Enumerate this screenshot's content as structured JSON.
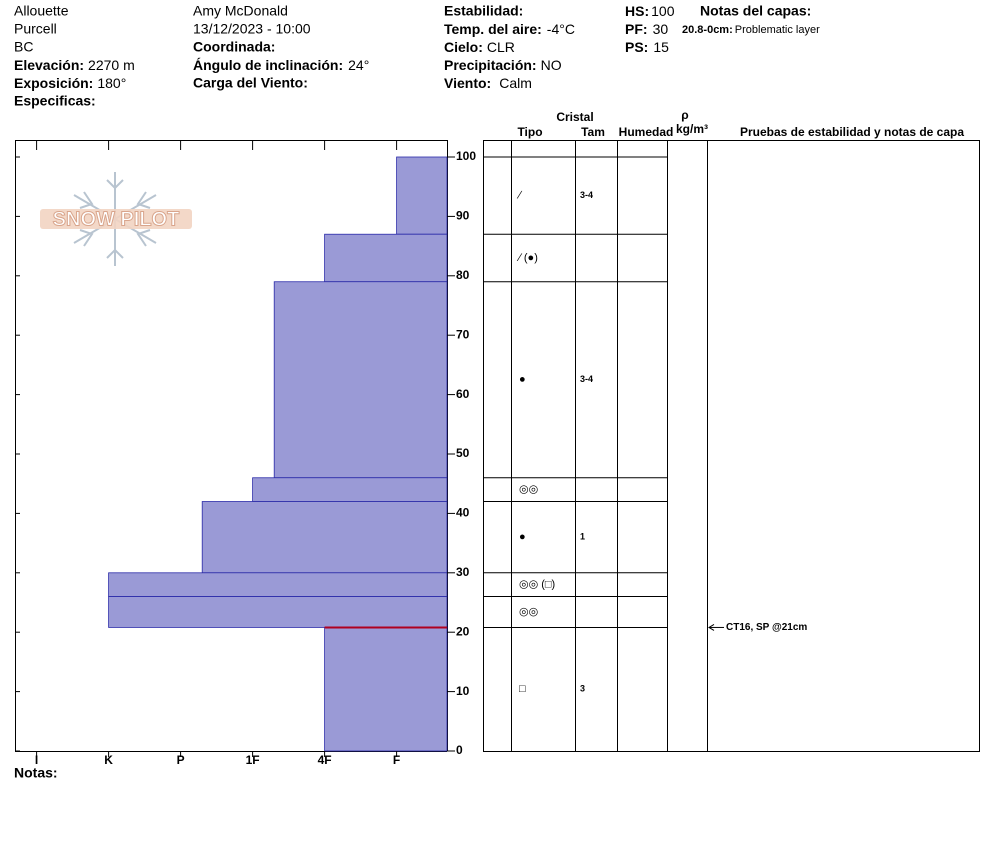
{
  "header": {
    "location": "Allouette",
    "range": "Purcell",
    "region": "BC",
    "elevation": {
      "label": "Elevación:",
      "value": "2270 m"
    },
    "aspect": {
      "label": "Exposición:",
      "value": "180°"
    },
    "specifics": {
      "label": "Especificas:"
    },
    "observer": "Amy McDonald",
    "datetime": "13/12/2023 - 10:00",
    "coordinates": {
      "label": "Coordinada:"
    },
    "slope_angle": {
      "label": "Ángulo de inclinación:",
      "value": "24°"
    },
    "wind_loading": {
      "label": "Carga del Viento:"
    },
    "stability": {
      "label": "Estabilidad:"
    },
    "air_temp": {
      "label": "Temp. del aire:",
      "value": "-4°C"
    },
    "sky": {
      "label": "Cielo:",
      "value": "CLR"
    },
    "precipitation": {
      "label": "Precipitación:",
      "value": "NO"
    },
    "wind": {
      "label": "Viento:",
      "value": "Calm"
    },
    "hs": {
      "label": "HS:",
      "value": "100"
    },
    "pf": {
      "label": "PF:",
      "value": "30"
    },
    "ps": {
      "label": "PS:",
      "value": "15"
    },
    "layer_notes": {
      "label": "Notas del capas:",
      "range": "20.8-0cm:",
      "text": "Problematic layer"
    }
  },
  "logo": "SNOW PILOT",
  "columns": {
    "crystal": "Cristal",
    "type": "Tipo",
    "size": "Tam",
    "moisture": "Humedad",
    "density": "ρ",
    "density_unit": "kg/m³",
    "tests": "Pruebas de estabilidad y notas de capa"
  },
  "notes": "Notas:",
  "chart_data": {
    "type": "snow_profile",
    "color": "#9a9ad6",
    "ylim": [
      0,
      100
    ],
    "yticks": [
      0,
      10,
      20,
      30,
      40,
      50,
      60,
      70,
      80,
      90,
      100
    ],
    "xlim": [
      6.3,
      0.3
    ],
    "xticks": [
      {
        "value": 6,
        "label": "I"
      },
      {
        "value": 5,
        "label": "K"
      },
      {
        "value": 4,
        "label": "P"
      },
      {
        "value": 3,
        "label": "1F"
      },
      {
        "value": 2,
        "label": "4F"
      },
      {
        "value": 1,
        "label": "F"
      }
    ],
    "layers": [
      {
        "top": 100,
        "bottom": 87,
        "hardness": 1,
        "grain": "∕",
        "size": "3-4"
      },
      {
        "top": 87,
        "bottom": 79,
        "hardness": 2,
        "grain": "∕ (●)",
        "size": null
      },
      {
        "top": 79,
        "bottom": 46,
        "hardness": 2.7,
        "grain": "●",
        "size": "3-4"
      },
      {
        "top": 46,
        "bottom": 42,
        "hardness": 3,
        "grain": "◎◎",
        "size": null
      },
      {
        "top": 42,
        "bottom": 30,
        "hardness": 3.7,
        "grain": "●",
        "size": "1"
      },
      {
        "top": 30,
        "bottom": 26,
        "hardness": 5,
        "grain": "◎◎ (□)",
        "size": null
      },
      {
        "top": 26,
        "bottom": 20.8,
        "hardness": 5,
        "grain": "◎◎",
        "size": null
      },
      {
        "top": 20.8,
        "bottom": 0,
        "hardness": 2,
        "grain": "□",
        "size": "3"
      }
    ],
    "highlight": {
      "depth": 20.8,
      "color": "#b00020"
    },
    "tests": [
      {
        "depth": 20.8,
        "label": "CT16, SP @21cm"
      }
    ]
  }
}
